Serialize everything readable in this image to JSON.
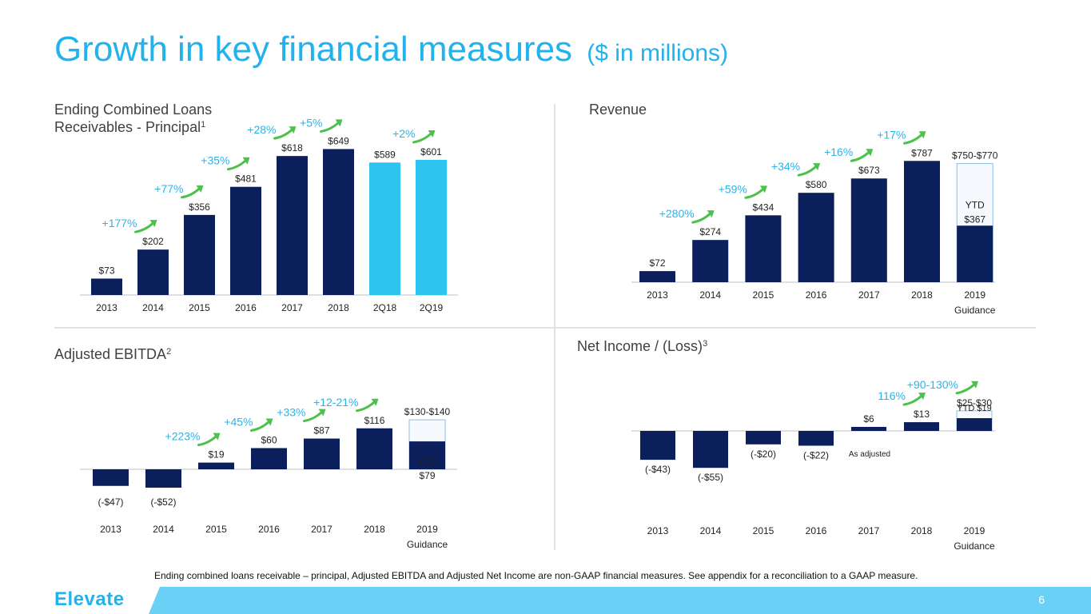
{
  "page": {
    "title": "Growth in key financial measures",
    "title_unit": "($ in millions)",
    "footnote": "Ending combined loans receivable – principal, Adjusted EBITDA and Adjusted Net Income are non-GAAP financial measures. See appendix for a reconciliation to a GAAP measure.",
    "logo": "Elevate",
    "page_number": "6"
  },
  "colors": {
    "navy": "#0a1f5c",
    "light_blue": "#2ec4f2",
    "green_arrow": "#4cc24c",
    "growth_text": "#2bb3ea",
    "title": "#22b2ec"
  },
  "chart_data": [
    {
      "type": "bar",
      "title": "Ending Combined Loans Receivables - Principal",
      "title_line1": "Ending Combined Loans",
      "title_line2": "Receivables - Principal",
      "title_sup": "1",
      "categories": [
        "2013",
        "2014",
        "2015",
        "2016",
        "2017",
        "2018",
        "2Q18",
        "2Q19"
      ],
      "values": [
        73,
        202,
        356,
        481,
        618,
        649,
        589,
        601
      ],
      "labels": [
        "$73",
        "$202",
        "$356",
        "$481",
        "$618",
        "$649",
        "$589",
        "$601"
      ],
      "growth": [
        "",
        "+177%",
        "+77%",
        "+35%",
        "+28%",
        "+5%",
        "",
        "+2%"
      ],
      "bar_colors": [
        "navy",
        "navy",
        "navy",
        "navy",
        "navy",
        "navy",
        "light_blue",
        "light_blue"
      ],
      "ylim": [
        0,
        700
      ]
    },
    {
      "type": "bar",
      "title": "Revenue",
      "categories": [
        "2013",
        "2014",
        "2015",
        "2016",
        "2017",
        "2018",
        "2019"
      ],
      "category_sublabels": [
        "",
        "",
        "",
        "",
        "",
        "",
        "Guidance"
      ],
      "values": [
        72,
        274,
        434,
        580,
        673,
        787,
        770
      ],
      "labels": [
        "$72",
        "$274",
        "$434",
        "$580",
        "$673",
        "$787",
        "$750-$770"
      ],
      "growth": [
        "",
        "+280%",
        "+59%",
        "+34%",
        "+16%",
        "+17%",
        ""
      ],
      "ytd": {
        "label": "YTD",
        "value_label": "$367",
        "value": 367
      },
      "ylim": [
        0,
        850
      ]
    },
    {
      "type": "bar",
      "title": "Adjusted EBITDA",
      "title_sup": "2",
      "categories": [
        "2013",
        "2014",
        "2015",
        "2016",
        "2017",
        "2018",
        "2019"
      ],
      "category_sublabels": [
        "",
        "",
        "",
        "",
        "",
        "",
        "Guidance"
      ],
      "values": [
        -47,
        -52,
        19,
        60,
        87,
        116,
        140
      ],
      "labels": [
        "(-$47)",
        "(-$52)",
        "$19",
        "$60",
        "$87",
        "$116",
        "$130-$140"
      ],
      "growth": [
        "",
        "",
        "+223%",
        "+45%",
        "+33%",
        "+12-21%",
        ""
      ],
      "ytd": {
        "label": "YTD",
        "value_label": "$79",
        "value": 79
      },
      "ylim": [
        -60,
        150
      ]
    },
    {
      "type": "bar",
      "title": "Net Income / (Loss)",
      "title_sup": "3",
      "categories": [
        "2013",
        "2014",
        "2015",
        "2016",
        "2017",
        "2018",
        "2019"
      ],
      "category_sublabels": [
        "",
        "",
        "",
        "",
        "",
        "",
        "Guidance"
      ],
      "values": [
        -43,
        -55,
        -20,
        -22,
        6,
        13,
        30
      ],
      "labels": [
        "(-$43)",
        "(-$55)",
        "(-$20)",
        "(-$22)",
        "$6",
        "$13",
        "$25-$30"
      ],
      "growth": [
        "",
        "",
        "",
        "",
        "",
        "116%",
        "+90-130%"
      ],
      "annotation": "As adjusted",
      "ytd": {
        "label": "YTD $19",
        "value": 19
      },
      "ylim": [
        -60,
        40
      ]
    }
  ]
}
